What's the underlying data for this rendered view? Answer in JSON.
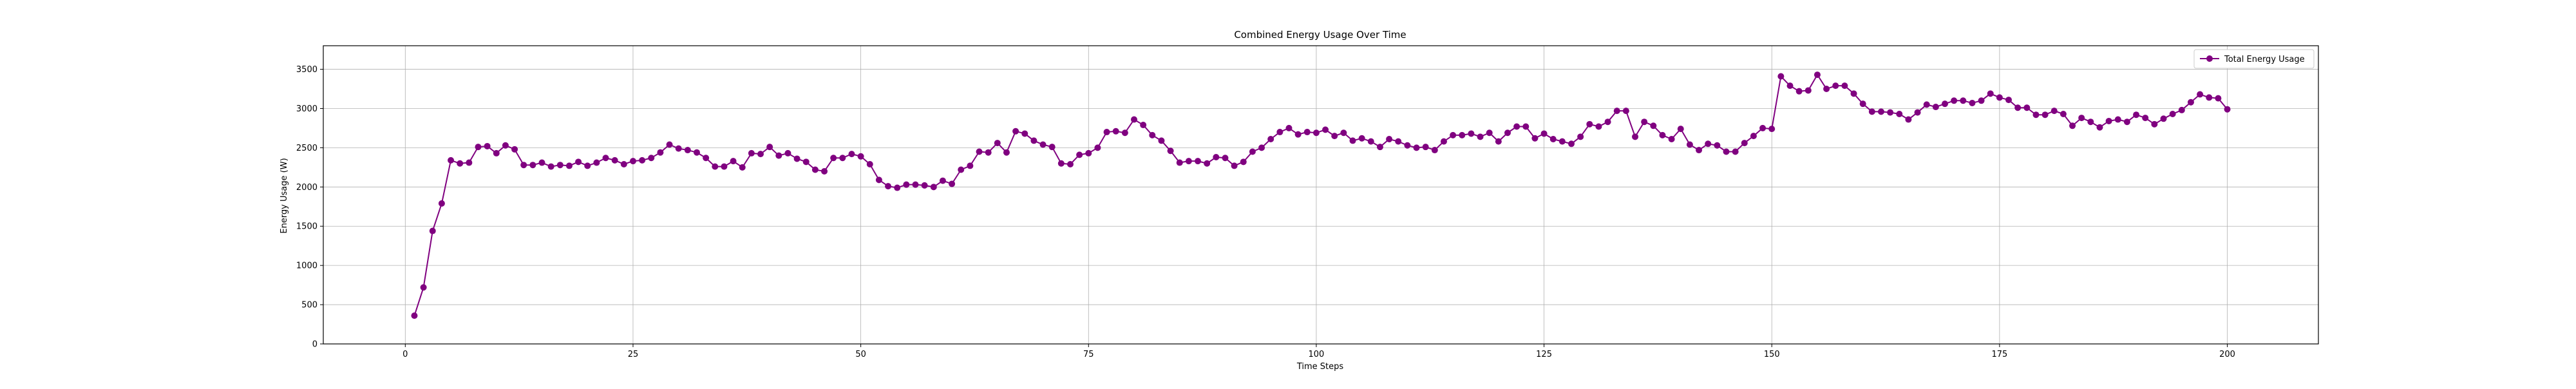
{
  "chart_data": {
    "type": "line",
    "title": "Combined Energy Usage Over Time",
    "xlabel": "Time Steps",
    "ylabel": "Energy Usage (W)",
    "xlim": [
      -9,
      210
    ],
    "ylim": [
      0,
      3800
    ],
    "xticks": [
      0,
      25,
      50,
      75,
      100,
      125,
      150,
      175,
      200
    ],
    "yticks": [
      0,
      500,
      1000,
      1500,
      2000,
      2500,
      3000,
      3500
    ],
    "grid": true,
    "legend_position": "top-right",
    "series": [
      {
        "name": "Total Energy Usage",
        "color": "#800080",
        "marker": "circle",
        "x": [
          1,
          2,
          3,
          4,
          5,
          6,
          7,
          8,
          9,
          10,
          11,
          12,
          13,
          14,
          15,
          16,
          17,
          18,
          19,
          20,
          21,
          22,
          23,
          24,
          25,
          26,
          27,
          28,
          29,
          30,
          31,
          32,
          33,
          34,
          35,
          36,
          37,
          38,
          39,
          40,
          41,
          42,
          43,
          44,
          45,
          46,
          47,
          48,
          49,
          50,
          51,
          52,
          53,
          54,
          55,
          56,
          57,
          58,
          59,
          60,
          61,
          62,
          63,
          64,
          65,
          66,
          67,
          68,
          69,
          70,
          71,
          72,
          73,
          74,
          75,
          76,
          77,
          78,
          79,
          80,
          81,
          82,
          83,
          84,
          85,
          86,
          87,
          88,
          89,
          90,
          91,
          92,
          93,
          94,
          95,
          96,
          97,
          98,
          99,
          100,
          101,
          102,
          103,
          104,
          105,
          106,
          107,
          108,
          109,
          110,
          111,
          112,
          113,
          114,
          115,
          116,
          117,
          118,
          119,
          120,
          121,
          122,
          123,
          124,
          125,
          126,
          127,
          128,
          129,
          130,
          131,
          132,
          133,
          134,
          135,
          136,
          137,
          138,
          139,
          140,
          141,
          142,
          143,
          144,
          145,
          146,
          147,
          148,
          149,
          150,
          151,
          152,
          153,
          154,
          155,
          156,
          157,
          158,
          159,
          160,
          161,
          162,
          163,
          164,
          165,
          166,
          167,
          168,
          169,
          170,
          171,
          172,
          173,
          174,
          175,
          176,
          177,
          178,
          179,
          180,
          181,
          182,
          183,
          184,
          185,
          186,
          187,
          188,
          189,
          190,
          191,
          192,
          193,
          194,
          195,
          196,
          197,
          198,
          199,
          200
        ],
        "values": [
          360,
          720,
          1440,
          1790,
          2340,
          2300,
          2310,
          2510,
          2520,
          2430,
          2530,
          2480,
          2280,
          2280,
          2310,
          2260,
          2280,
          2270,
          2320,
          2270,
          2310,
          2370,
          2340,
          2290,
          2330,
          2340,
          2370,
          2440,
          2540,
          2490,
          2470,
          2440,
          2370,
          2260,
          2260,
          2330,
          2250,
          2430,
          2420,
          2510,
          2400,
          2430,
          2360,
          2320,
          2220,
          2200,
          2370,
          2370,
          2420,
          2390,
          2290,
          2090,
          2010,
          1990,
          2030,
          2030,
          2020,
          2000,
          2080,
          2040,
          2220,
          2270,
          2450,
          2440,
          2560,
          2440,
          2710,
          2680,
          2590,
          2540,
          2510,
          2300,
          2290,
          2410,
          2430,
          2500,
          2700,
          2710,
          2690,
          2860,
          2790,
          2660,
          2590,
          2460,
          2310,
          2330,
          2330,
          2300,
          2380,
          2370,
          2270,
          2320,
          2450,
          2500,
          2610,
          2700,
          2750,
          2670,
          2700,
          2690,
          2730,
          2650,
          2690,
          2590,
          2620,
          2580,
          2510,
          2610,
          2580,
          2530,
          2500,
          2510,
          2470,
          2580,
          2660,
          2660,
          2680,
          2640,
          2690,
          2580,
          2690,
          2770,
          2770,
          2620,
          2680,
          2610,
          2580,
          2550,
          2640,
          2800,
          2770,
          2830,
          2970,
          2970,
          2640,
          2830,
          2780,
          2660,
          2610,
          2740,
          2540,
          2470,
          2550,
          2530,
          2450,
          2450,
          2560,
          2650,
          2750,
          2740,
          3410,
          3290,
          3220,
          3230,
          3430,
          3250,
          3290,
          3290,
          3190,
          3060,
          2960,
          2960,
          2950,
          2930,
          2860,
          2950,
          3050,
          3020,
          3060,
          3100,
          3100,
          3070,
          3100,
          3190,
          3140,
          3110,
          3010,
          3010,
          2920,
          2920,
          2970,
          2930,
          2780,
          2880,
          2830,
          2760,
          2840,
          2860,
          2830,
          2920,
          2880,
          2800,
          2870,
          2930,
          2980,
          3080,
          3180,
          3140,
          3130,
          2990
        ]
      }
    ]
  }
}
